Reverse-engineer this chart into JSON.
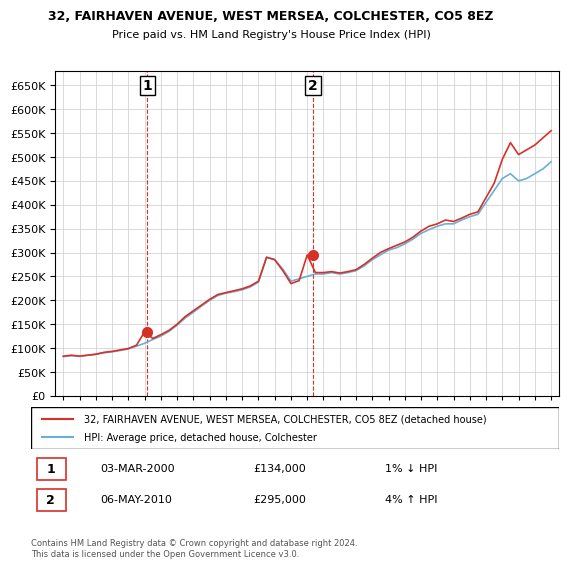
{
  "title1": "32, FAIRHAVEN AVENUE, WEST MERSEA, COLCHESTER, CO5 8EZ",
  "title2": "Price paid vs. HM Land Registry's House Price Index (HPI)",
  "ylabel_ticks": [
    "£0",
    "£50K",
    "£100K",
    "£150K",
    "£200K",
    "£250K",
    "£300K",
    "£350K",
    "£400K",
    "£450K",
    "£500K",
    "£550K",
    "£600K",
    "£650K"
  ],
  "ylim": [
    0,
    680000
  ],
  "yticks": [
    0,
    50000,
    100000,
    150000,
    200000,
    250000,
    300000,
    350000,
    400000,
    450000,
    500000,
    550000,
    600000,
    650000
  ],
  "hpi_color": "#6baed6",
  "price_color": "#d73027",
  "marker_color": "#d73027",
  "transaction1": {
    "date": 2000.17,
    "price": 134000,
    "label": "1"
  },
  "transaction2": {
    "date": 2010.35,
    "price": 295000,
    "label": "2"
  },
  "table_rows": [
    {
      "num": "1",
      "date": "03-MAR-2000",
      "price": "£134,000",
      "hpi": "1% ↓ HPI"
    },
    {
      "num": "2",
      "date": "06-MAY-2010",
      "price": "£295,000",
      "hpi": "4% ↑ HPI"
    }
  ],
  "footer": "Contains HM Land Registry data © Crown copyright and database right 2024.\nThis data is licensed under the Open Government Licence v3.0.",
  "legend_line1": "32, FAIRHAVEN AVENUE, WEST MERSEA, COLCHESTER, CO5 8EZ (detached house)",
  "legend_line2": "HPI: Average price, detached house, Colchester",
  "hpi_data_x": [
    1995,
    1995.5,
    1996,
    1996.5,
    1997,
    1997.5,
    1998,
    1998.5,
    1999,
    1999.5,
    2000,
    2000.5,
    2001,
    2001.5,
    2002,
    2002.5,
    2003,
    2003.5,
    2004,
    2004.5,
    2005,
    2005.5,
    2006,
    2006.5,
    2007,
    2007.5,
    2008,
    2008.5,
    2009,
    2009.5,
    2010,
    2010.5,
    2011,
    2011.5,
    2012,
    2012.5,
    2013,
    2013.5,
    2014,
    2014.5,
    2015,
    2015.5,
    2016,
    2016.5,
    2017,
    2017.5,
    2018,
    2018.5,
    2019,
    2019.5,
    2020,
    2020.5,
    2021,
    2021.5,
    2022,
    2022.5,
    2023,
    2023.5,
    2024,
    2024.5,
    2025
  ],
  "hpi_data_y": [
    82000,
    84000,
    83000,
    85000,
    87000,
    90000,
    92000,
    95000,
    98000,
    104000,
    110000,
    118000,
    125000,
    135000,
    148000,
    163000,
    175000,
    188000,
    200000,
    210000,
    215000,
    218000,
    222000,
    228000,
    238000,
    290000,
    285000,
    265000,
    240000,
    245000,
    250000,
    255000,
    255000,
    258000,
    255000,
    258000,
    262000,
    272000,
    285000,
    295000,
    305000,
    310000,
    318000,
    328000,
    340000,
    348000,
    355000,
    360000,
    360000,
    368000,
    375000,
    380000,
    405000,
    430000,
    455000,
    465000,
    450000,
    455000,
    465000,
    475000,
    490000
  ],
  "price_data_x": [
    1995,
    1995.5,
    1996,
    1996.5,
    1997,
    1997.5,
    1998,
    1998.5,
    1999,
    1999.5,
    2000,
    2000.5,
    2001,
    2001.5,
    2002,
    2002.5,
    2003,
    2003.5,
    2004,
    2004.5,
    2005,
    2005.5,
    2006,
    2006.5,
    2007,
    2007.5,
    2008,
    2008.5,
    2009,
    2009.5,
    2010,
    2010.5,
    2011,
    2011.5,
    2012,
    2012.5,
    2013,
    2013.5,
    2014,
    2014.5,
    2015,
    2015.5,
    2016,
    2016.5,
    2017,
    2017.5,
    2018,
    2018.5,
    2019,
    2019.5,
    2020,
    2020.5,
    2021,
    2021.5,
    2022,
    2022.5,
    2023,
    2023.5,
    2024,
    2024.5,
    2025
  ],
  "price_data_y": [
    83000,
    85000,
    83000,
    85000,
    87000,
    91000,
    93000,
    96000,
    99000,
    106000,
    134000,
    120000,
    128000,
    137000,
    150000,
    166000,
    178000,
    190000,
    202000,
    212000,
    216000,
    220000,
    224000,
    230000,
    240000,
    290000,
    285000,
    262000,
    235000,
    241000,
    295000,
    258000,
    258000,
    260000,
    257000,
    260000,
    264000,
    275000,
    288000,
    300000,
    308000,
    315000,
    322000,
    332000,
    345000,
    355000,
    360000,
    368000,
    365000,
    372000,
    380000,
    385000,
    415000,
    445000,
    495000,
    530000,
    505000,
    515000,
    525000,
    540000,
    555000
  ]
}
